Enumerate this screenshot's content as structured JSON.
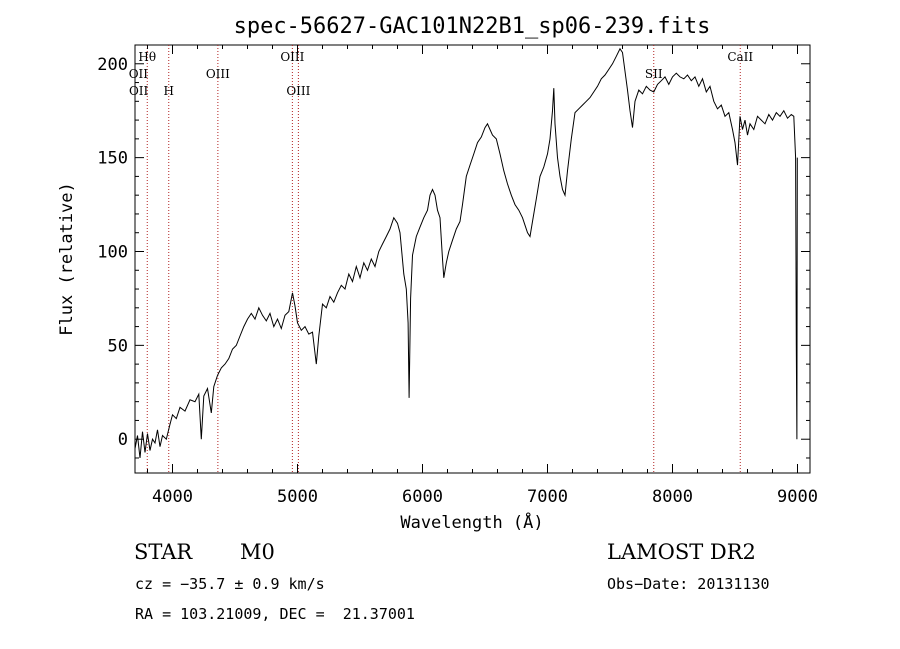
{
  "chart_data": {
    "type": "line",
    "title": "spec-56627-GAC101N22B1_sp06-239.fits",
    "xlabel": "Wavelength (Å)",
    "ylabel": "Flux (relative)",
    "xlim": [
      3700,
      9100
    ],
    "ylim": [
      -18,
      210
    ],
    "x_ticks": [
      4000,
      5000,
      6000,
      7000,
      8000,
      9000
    ],
    "y_ticks": [
      0,
      50,
      100,
      150,
      200
    ],
    "grid": false,
    "series": [
      {
        "color": "#000000",
        "points": [
          [
            3700,
            -5
          ],
          [
            3720,
            2
          ],
          [
            3740,
            -10
          ],
          [
            3760,
            4
          ],
          [
            3780,
            -7
          ],
          [
            3800,
            3
          ],
          [
            3820,
            -6
          ],
          [
            3840,
            0
          ],
          [
            3860,
            -2
          ],
          [
            3880,
            5
          ],
          [
            3900,
            -4
          ],
          [
            3920,
            2
          ],
          [
            3950,
            0
          ],
          [
            3980,
            8
          ],
          [
            4000,
            13
          ],
          [
            4030,
            11
          ],
          [
            4060,
            17
          ],
          [
            4100,
            15
          ],
          [
            4140,
            21
          ],
          [
            4180,
            20
          ],
          [
            4210,
            24
          ],
          [
            4230,
            0
          ],
          [
            4250,
            23
          ],
          [
            4280,
            27
          ],
          [
            4310,
            14
          ],
          [
            4330,
            28
          ],
          [
            4360,
            34
          ],
          [
            4390,
            38
          ],
          [
            4420,
            40
          ],
          [
            4450,
            43
          ],
          [
            4480,
            48
          ],
          [
            4510,
            50
          ],
          [
            4540,
            55
          ],
          [
            4570,
            60
          ],
          [
            4600,
            64
          ],
          [
            4630,
            67
          ],
          [
            4660,
            64
          ],
          [
            4690,
            70
          ],
          [
            4720,
            66
          ],
          [
            4750,
            63
          ],
          [
            4780,
            67
          ],
          [
            4810,
            60
          ],
          [
            4840,
            64
          ],
          [
            4870,
            59
          ],
          [
            4900,
            66
          ],
          [
            4930,
            68
          ],
          [
            4960,
            78
          ],
          [
            4980,
            71
          ],
          [
            5000,
            62
          ],
          [
            5030,
            58
          ],
          [
            5060,
            60
          ],
          [
            5090,
            56
          ],
          [
            5120,
            57
          ],
          [
            5150,
            40
          ],
          [
            5170,
            55
          ],
          [
            5200,
            72
          ],
          [
            5230,
            70
          ],
          [
            5260,
            76
          ],
          [
            5290,
            73
          ],
          [
            5320,
            78
          ],
          [
            5350,
            82
          ],
          [
            5380,
            80
          ],
          [
            5410,
            88
          ],
          [
            5440,
            84
          ],
          [
            5470,
            92
          ],
          [
            5500,
            86
          ],
          [
            5530,
            94
          ],
          [
            5560,
            90
          ],
          [
            5590,
            96
          ],
          [
            5620,
            92
          ],
          [
            5650,
            100
          ],
          [
            5680,
            104
          ],
          [
            5710,
            108
          ],
          [
            5740,
            112
          ],
          [
            5770,
            118
          ],
          [
            5800,
            115
          ],
          [
            5820,
            110
          ],
          [
            5850,
            88
          ],
          [
            5870,
            80
          ],
          [
            5885,
            62
          ],
          [
            5893,
            22
          ],
          [
            5905,
            75
          ],
          [
            5920,
            98
          ],
          [
            5950,
            108
          ],
          [
            5980,
            113
          ],
          [
            6010,
            118
          ],
          [
            6040,
            122
          ],
          [
            6060,
            130
          ],
          [
            6080,
            133
          ],
          [
            6100,
            130
          ],
          [
            6120,
            122
          ],
          [
            6140,
            118
          ],
          [
            6160,
            96
          ],
          [
            6170,
            86
          ],
          [
            6190,
            94
          ],
          [
            6210,
            100
          ],
          [
            6240,
            106
          ],
          [
            6270,
            112
          ],
          [
            6300,
            116
          ],
          [
            6320,
            125
          ],
          [
            6350,
            140
          ],
          [
            6380,
            146
          ],
          [
            6410,
            152
          ],
          [
            6440,
            158
          ],
          [
            6470,
            161
          ],
          [
            6500,
            166
          ],
          [
            6520,
            168
          ],
          [
            6540,
            165
          ],
          [
            6560,
            162
          ],
          [
            6590,
            160
          ],
          [
            6620,
            152
          ],
          [
            6650,
            143
          ],
          [
            6680,
            136
          ],
          [
            6710,
            130
          ],
          [
            6740,
            125
          ],
          [
            6770,
            122
          ],
          [
            6800,
            118
          ],
          [
            6820,
            114
          ],
          [
            6840,
            110
          ],
          [
            6860,
            108
          ],
          [
            6880,
            116
          ],
          [
            6910,
            128
          ],
          [
            6940,
            140
          ],
          [
            6970,
            145
          ],
          [
            7000,
            152
          ],
          [
            7020,
            160
          ],
          [
            7040,
            175
          ],
          [
            7050,
            187
          ],
          [
            7060,
            168
          ],
          [
            7080,
            150
          ],
          [
            7100,
            140
          ],
          [
            7120,
            133
          ],
          [
            7140,
            130
          ],
          [
            7160,
            143
          ],
          [
            7190,
            160
          ],
          [
            7220,
            174
          ],
          [
            7250,
            176
          ],
          [
            7280,
            178
          ],
          [
            7310,
            180
          ],
          [
            7340,
            182
          ],
          [
            7370,
            185
          ],
          [
            7400,
            188
          ],
          [
            7430,
            192
          ],
          [
            7460,
            194
          ],
          [
            7490,
            197
          ],
          [
            7520,
            200
          ],
          [
            7550,
            204
          ],
          [
            7580,
            208
          ],
          [
            7600,
            206
          ],
          [
            7620,
            196
          ],
          [
            7640,
            186
          ],
          [
            7660,
            175
          ],
          [
            7680,
            166
          ],
          [
            7700,
            180
          ],
          [
            7730,
            186
          ],
          [
            7760,
            184
          ],
          [
            7790,
            188
          ],
          [
            7820,
            186
          ],
          [
            7850,
            185
          ],
          [
            7880,
            189
          ],
          [
            7910,
            191
          ],
          [
            7940,
            193
          ],
          [
            7970,
            189
          ],
          [
            8000,
            193
          ],
          [
            8030,
            195
          ],
          [
            8060,
            193
          ],
          [
            8090,
            192
          ],
          [
            8120,
            194
          ],
          [
            8150,
            191
          ],
          [
            8180,
            193
          ],
          [
            8210,
            188
          ],
          [
            8240,
            192
          ],
          [
            8270,
            185
          ],
          [
            8300,
            188
          ],
          [
            8330,
            180
          ],
          [
            8360,
            176
          ],
          [
            8390,
            178
          ],
          [
            8420,
            172
          ],
          [
            8450,
            174
          ],
          [
            8480,
            165
          ],
          [
            8500,
            158
          ],
          [
            8520,
            146
          ],
          [
            8540,
            172
          ],
          [
            8560,
            165
          ],
          [
            8580,
            170
          ],
          [
            8600,
            162
          ],
          [
            8620,
            168
          ],
          [
            8650,
            165
          ],
          [
            8680,
            172
          ],
          [
            8710,
            170
          ],
          [
            8740,
            168
          ],
          [
            8770,
            173
          ],
          [
            8800,
            170
          ],
          [
            8830,
            174
          ],
          [
            8860,
            172
          ],
          [
            8890,
            175
          ],
          [
            8920,
            171
          ],
          [
            8950,
            173
          ],
          [
            8970,
            172
          ],
          [
            8985,
            150
          ],
          [
            8990,
            50
          ],
          [
            8995,
            0
          ],
          [
            8998,
            150
          ]
        ]
      }
    ],
    "line_labels": [
      {
        "label": "Hθ",
        "wavelength": 3798,
        "row": 0
      },
      {
        "label": "OII",
        "wavelength": 3727,
        "row": 1
      },
      {
        "label": "OII",
        "wavelength": 3729,
        "row": 2
      },
      {
        "label": "H",
        "wavelength": 3970,
        "row": 2
      },
      {
        "label": "OIII",
        "wavelength": 4363,
        "row": 1
      },
      {
        "label": "OIII",
        "wavelength": 4959,
        "row": 0
      },
      {
        "label": "OIII",
        "wavelength": 5007,
        "row": 2
      },
      {
        "label": "SII",
        "wavelength": 7850,
        "row": 1
      },
      {
        "label": "CaII",
        "wavelength": 8542,
        "row": 0
      }
    ],
    "marker_lines": [
      3798,
      3970,
      4363,
      4959,
      5007,
      7850,
      8542
    ]
  },
  "info": {
    "class_label": "STAR",
    "subclass": "M0",
    "survey": "LAMOST DR2",
    "cz": "cz = −35.7 ± 0.9 km/s",
    "obs_date": "Obs−Date: 20131130",
    "radec": "RA = 103.21009, DEC =  21.37001"
  },
  "colors": {
    "spectrum": "#000000",
    "marker_lines": "#b22222"
  }
}
